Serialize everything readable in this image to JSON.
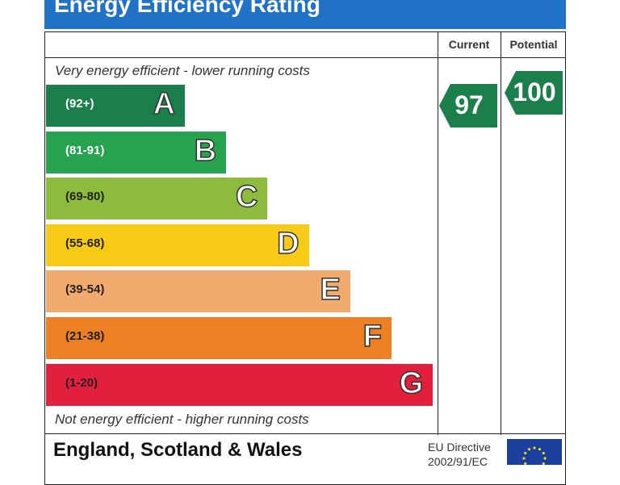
{
  "header": {
    "title": "Energy Efficiency Rating"
  },
  "columns": {
    "current": "Current",
    "potential": "Potential"
  },
  "notes": {
    "top": "Very energy efficient - lower running costs",
    "bottom": "Not energy efficient - higher running costs"
  },
  "chart_data": {
    "type": "bar",
    "title": "Energy Efficiency Rating",
    "bands": [
      {
        "letter": "A",
        "range": "(92+)",
        "color": "#1a7f4b",
        "range_color": "#ffffff"
      },
      {
        "letter": "B",
        "range": "(81-91)",
        "color": "#27a24e",
        "range_color": "#ffffff"
      },
      {
        "letter": "C",
        "range": "(69-80)",
        "color": "#8cbb3d",
        "range_color": "#222222"
      },
      {
        "letter": "D",
        "range": "(55-68)",
        "color": "#f7cb15",
        "range_color": "#222222"
      },
      {
        "letter": "E",
        "range": "(39-54)",
        "color": "#f2ab6e",
        "range_color": "#222222"
      },
      {
        "letter": "F",
        "range": "(21-38)",
        "color": "#ec8023",
        "range_color": "#222222"
      },
      {
        "letter": "G",
        "range": "(1-20)",
        "color": "#e21f3c",
        "range_color": "#222222"
      }
    ],
    "current": {
      "value": "97",
      "band": "A",
      "color": "#1a7f4b"
    },
    "potential": {
      "value": "100",
      "band": "A",
      "color": "#1a7f4b"
    }
  },
  "footer": {
    "region": "England, Scotland & Wales",
    "directive_line1": "EU Directive",
    "directive_line2": "2002/91/EC"
  },
  "icons": {
    "flag": "eu-flag-icon"
  }
}
